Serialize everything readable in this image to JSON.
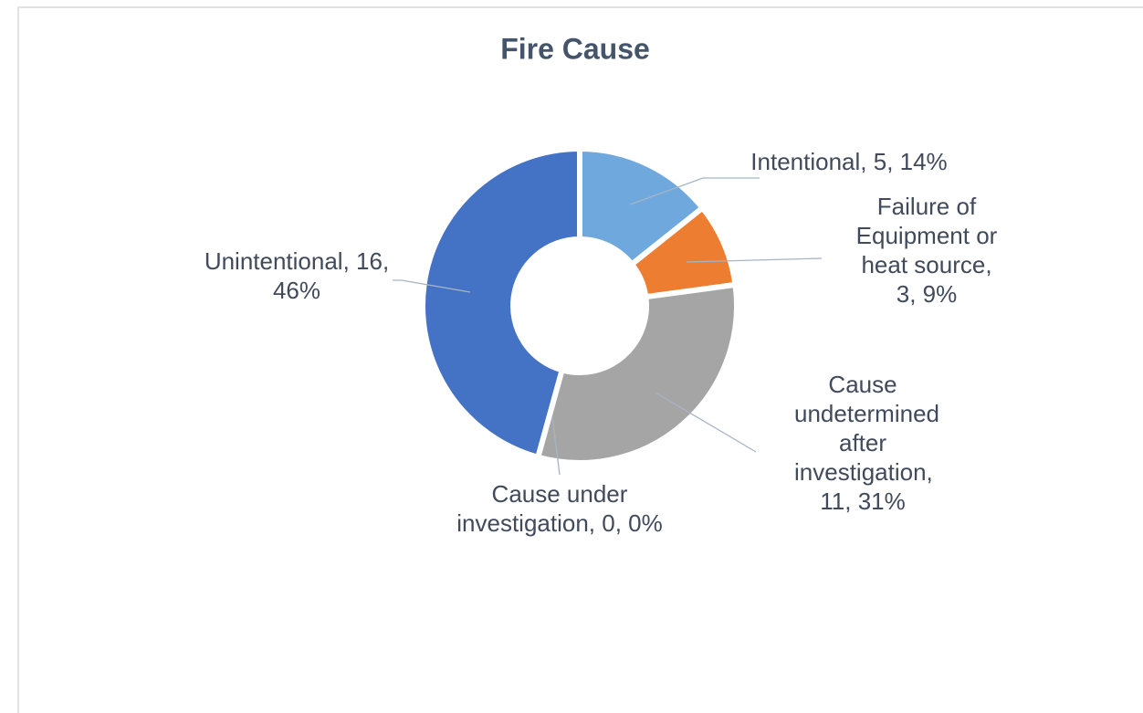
{
  "chart_data": {
    "type": "donut",
    "title": "Fire Cause",
    "values": [
      5,
      3,
      11,
      0,
      16
    ],
    "value_labels": [
      "Intentional, 5, 14%",
      "Failure of Equipment or heat source, 3, 9%",
      "Cause undetermined after investigation, 11, 31%",
      "Cause under investigation, 0, 0%",
      "Unintentional, 16, 46%"
    ],
    "colors": [
      "#6fa8dc",
      "#ed7d31",
      "#a5a5a5",
      "#ffc000",
      "#4472c4"
    ]
  }
}
